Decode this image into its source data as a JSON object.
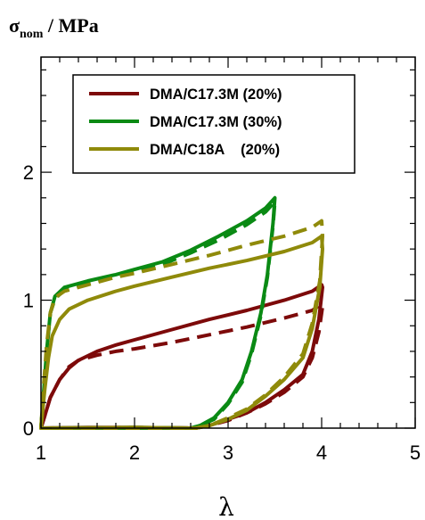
{
  "chart_data": {
    "type": "line",
    "title": "",
    "ylabel": {
      "main": "σ",
      "sub": "nom",
      "rest": " / MPa"
    },
    "xlabel": "λ",
    "xlim": [
      1,
      5
    ],
    "ylim": [
      0,
      2.9
    ],
    "xticks": [
      1,
      2,
      3,
      4,
      5
    ],
    "yticks": [
      0,
      1,
      2
    ],
    "x_minor_step": 0.2,
    "y_minor_step": 0.2,
    "grid": false,
    "legend_position": "top-center",
    "series": [
      {
        "name": "DMA/C17.3M (20%)",
        "color": "#7d0a0a",
        "solid": [
          [
            1,
            0
          ],
          [
            1.05,
            0.12
          ],
          [
            1.1,
            0.24
          ],
          [
            1.2,
            0.38
          ],
          [
            1.3,
            0.47
          ],
          [
            1.4,
            0.53
          ],
          [
            1.6,
            0.6
          ],
          [
            1.8,
            0.65
          ],
          [
            2,
            0.69
          ],
          [
            2.4,
            0.77
          ],
          [
            2.8,
            0.85
          ],
          [
            3.2,
            0.92
          ],
          [
            3.6,
            1.0
          ],
          [
            3.9,
            1.07
          ],
          [
            4,
            1.12
          ],
          [
            4.01,
            1.1
          ],
          [
            3.97,
            0.85
          ],
          [
            3.9,
            0.6
          ],
          [
            3.8,
            0.42
          ],
          [
            3.6,
            0.3
          ],
          [
            3.4,
            0.2
          ],
          [
            3.2,
            0.12
          ],
          [
            3.0,
            0.07
          ],
          [
            2.8,
            0.02
          ],
          [
            2.65,
            0
          ],
          [
            2.0,
            0.005
          ],
          [
            1.5,
            0.005
          ],
          [
            1.0,
            0
          ]
        ],
        "dashed": [
          [
            1,
            0
          ],
          [
            1.05,
            0.12
          ],
          [
            1.1,
            0.24
          ],
          [
            1.2,
            0.38
          ],
          [
            1.3,
            0.48
          ],
          [
            1.4,
            0.53
          ],
          [
            1.6,
            0.57
          ],
          [
            1.8,
            0.6
          ],
          [
            2,
            0.62
          ],
          [
            2.4,
            0.67
          ],
          [
            2.8,
            0.73
          ],
          [
            3.2,
            0.79
          ],
          [
            3.6,
            0.86
          ],
          [
            3.9,
            0.92
          ],
          [
            4,
            0.97
          ],
          [
            4.01,
            0.95
          ],
          [
            3.97,
            0.75
          ],
          [
            3.9,
            0.55
          ],
          [
            3.8,
            0.4
          ],
          [
            3.6,
            0.28
          ],
          [
            3.4,
            0.19
          ],
          [
            3.2,
            0.12
          ],
          [
            3.0,
            0.06
          ],
          [
            2.8,
            0.02
          ],
          [
            2.65,
            0
          ],
          [
            2.0,
            0.005
          ],
          [
            1.0,
            0
          ]
        ]
      },
      {
        "name": "DMA/C17.3M (30%)",
        "color": "#0a8a14",
        "solid": [
          [
            1,
            0
          ],
          [
            1.03,
            0.3
          ],
          [
            1.06,
            0.6
          ],
          [
            1.1,
            0.9
          ],
          [
            1.15,
            1.03
          ],
          [
            1.25,
            1.1
          ],
          [
            1.5,
            1.15
          ],
          [
            1.8,
            1.2
          ],
          [
            2,
            1.24
          ],
          [
            2.3,
            1.3
          ],
          [
            2.6,
            1.39
          ],
          [
            2.9,
            1.5
          ],
          [
            3.2,
            1.62
          ],
          [
            3.4,
            1.72
          ],
          [
            3.5,
            1.8
          ],
          [
            3.48,
            1.6
          ],
          [
            3.42,
            1.2
          ],
          [
            3.35,
            0.9
          ],
          [
            3.25,
            0.6
          ],
          [
            3.15,
            0.38
          ],
          [
            3.0,
            0.2
          ],
          [
            2.85,
            0.08
          ],
          [
            2.7,
            0.02
          ],
          [
            2.6,
            0
          ],
          [
            2.0,
            0.005
          ],
          [
            1.0,
            0
          ]
        ],
        "dashed": [
          [
            1,
            0
          ],
          [
            1.03,
            0.3
          ],
          [
            1.06,
            0.6
          ],
          [
            1.1,
            0.9
          ],
          [
            1.15,
            1.01
          ],
          [
            1.25,
            1.08
          ],
          [
            1.5,
            1.13
          ],
          [
            1.8,
            1.18
          ],
          [
            2,
            1.22
          ],
          [
            2.3,
            1.28
          ],
          [
            2.6,
            1.37
          ],
          [
            2.9,
            1.47
          ],
          [
            3.2,
            1.59
          ],
          [
            3.4,
            1.69
          ],
          [
            3.5,
            1.77
          ],
          [
            3.48,
            1.58
          ],
          [
            3.42,
            1.18
          ],
          [
            3.35,
            0.88
          ],
          [
            3.25,
            0.58
          ],
          [
            3.15,
            0.36
          ],
          [
            3.0,
            0.19
          ],
          [
            2.85,
            0.07
          ],
          [
            2.7,
            0.02
          ],
          [
            2.6,
            0
          ],
          [
            1.0,
            0
          ]
        ]
      },
      {
        "name": "DMA/C18A    (20%)",
        "color": "#8f8a0a",
        "solid": [
          [
            1,
            0
          ],
          [
            1.04,
            0.3
          ],
          [
            1.08,
            0.55
          ],
          [
            1.12,
            0.72
          ],
          [
            1.2,
            0.85
          ],
          [
            1.3,
            0.93
          ],
          [
            1.5,
            1.0
          ],
          [
            1.8,
            1.07
          ],
          [
            2,
            1.11
          ],
          [
            2.4,
            1.18
          ],
          [
            2.8,
            1.25
          ],
          [
            3.2,
            1.31
          ],
          [
            3.6,
            1.38
          ],
          [
            3.9,
            1.45
          ],
          [
            4,
            1.5
          ],
          [
            4.01,
            1.4
          ],
          [
            3.98,
            1.1
          ],
          [
            3.9,
            0.78
          ],
          [
            3.8,
            0.55
          ],
          [
            3.6,
            0.38
          ],
          [
            3.4,
            0.25
          ],
          [
            3.2,
            0.14
          ],
          [
            3.0,
            0.07
          ],
          [
            2.8,
            0.02
          ],
          [
            2.65,
            0
          ],
          [
            2.0,
            0.005
          ],
          [
            1.0,
            0
          ]
        ],
        "dashed": [
          [
            1,
            0
          ],
          [
            1.03,
            0.35
          ],
          [
            1.06,
            0.65
          ],
          [
            1.1,
            0.9
          ],
          [
            1.15,
            1.02
          ],
          [
            1.25,
            1.07
          ],
          [
            1.5,
            1.12
          ],
          [
            1.8,
            1.18
          ],
          [
            2,
            1.21
          ],
          [
            2.4,
            1.28
          ],
          [
            2.8,
            1.35
          ],
          [
            3.2,
            1.43
          ],
          [
            3.6,
            1.5
          ],
          [
            3.9,
            1.57
          ],
          [
            4,
            1.62
          ],
          [
            4.01,
            1.5
          ],
          [
            3.98,
            1.15
          ],
          [
            3.9,
            0.82
          ],
          [
            3.8,
            0.58
          ],
          [
            3.6,
            0.4
          ],
          [
            3.4,
            0.26
          ],
          [
            3.2,
            0.15
          ],
          [
            3.0,
            0.08
          ],
          [
            2.8,
            0.02
          ],
          [
            2.65,
            0
          ],
          [
            1.0,
            0
          ]
        ]
      }
    ]
  }
}
